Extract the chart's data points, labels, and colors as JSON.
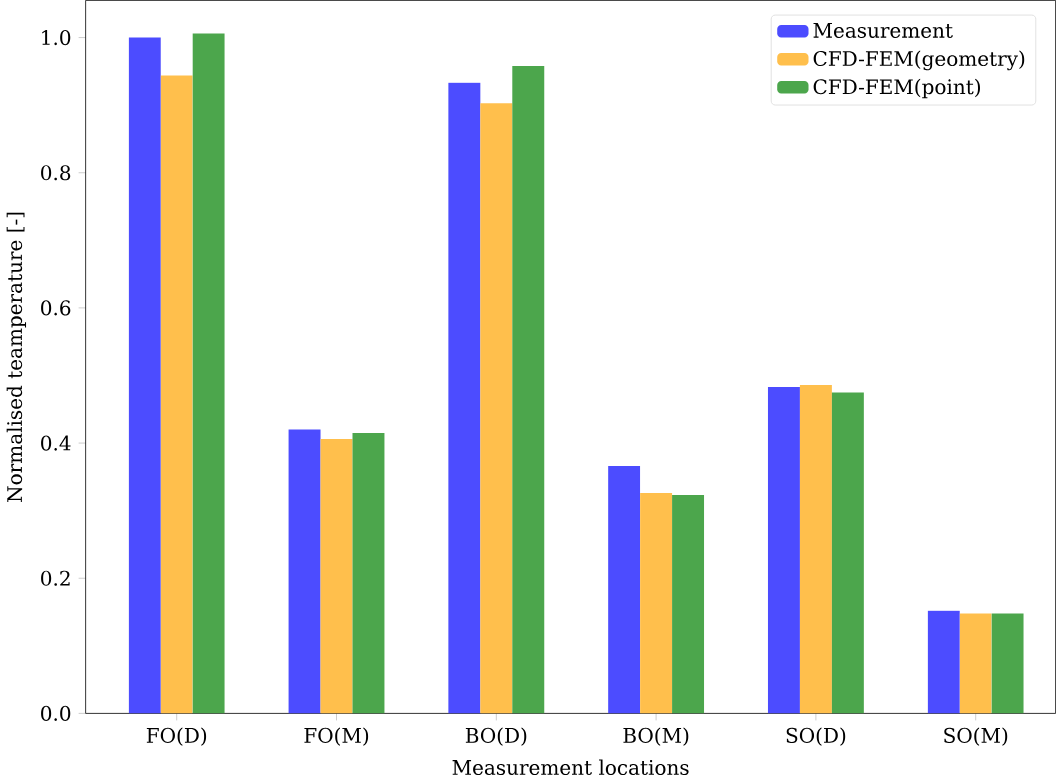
{
  "chart_data": {
    "type": "bar",
    "xlabel": "Measurement locations",
    "ylabel": "Normalised teamperature [-]",
    "categories": [
      "FO(D)",
      "FO(M)",
      "BO(D)",
      "BO(M)",
      "SO(D)",
      "SO(M)"
    ],
    "series": [
      {
        "name": "Measurement",
        "color": "#4c4cff",
        "values": [
          1.0,
          0.42,
          0.933,
          0.366,
          0.483,
          0.152
        ]
      },
      {
        "name": "CFD-FEM(geometry)",
        "color": "#ffbf4c",
        "values": [
          0.944,
          0.406,
          0.903,
          0.326,
          0.486,
          0.148
        ]
      },
      {
        "name": "CFD-FEM(point)",
        "color": "#4ca64c",
        "values": [
          1.006,
          0.415,
          0.958,
          0.323,
          0.475,
          0.148
        ]
      }
    ],
    "ylim": [
      0,
      1.055
    ],
    "yticks": [
      {
        "value": 0,
        "label": "0.0"
      },
      0.2,
      0.4,
      0.6,
      0.8,
      {
        "value": 1,
        "label": "1.0"
      }
    ],
    "legend": "top right"
  }
}
